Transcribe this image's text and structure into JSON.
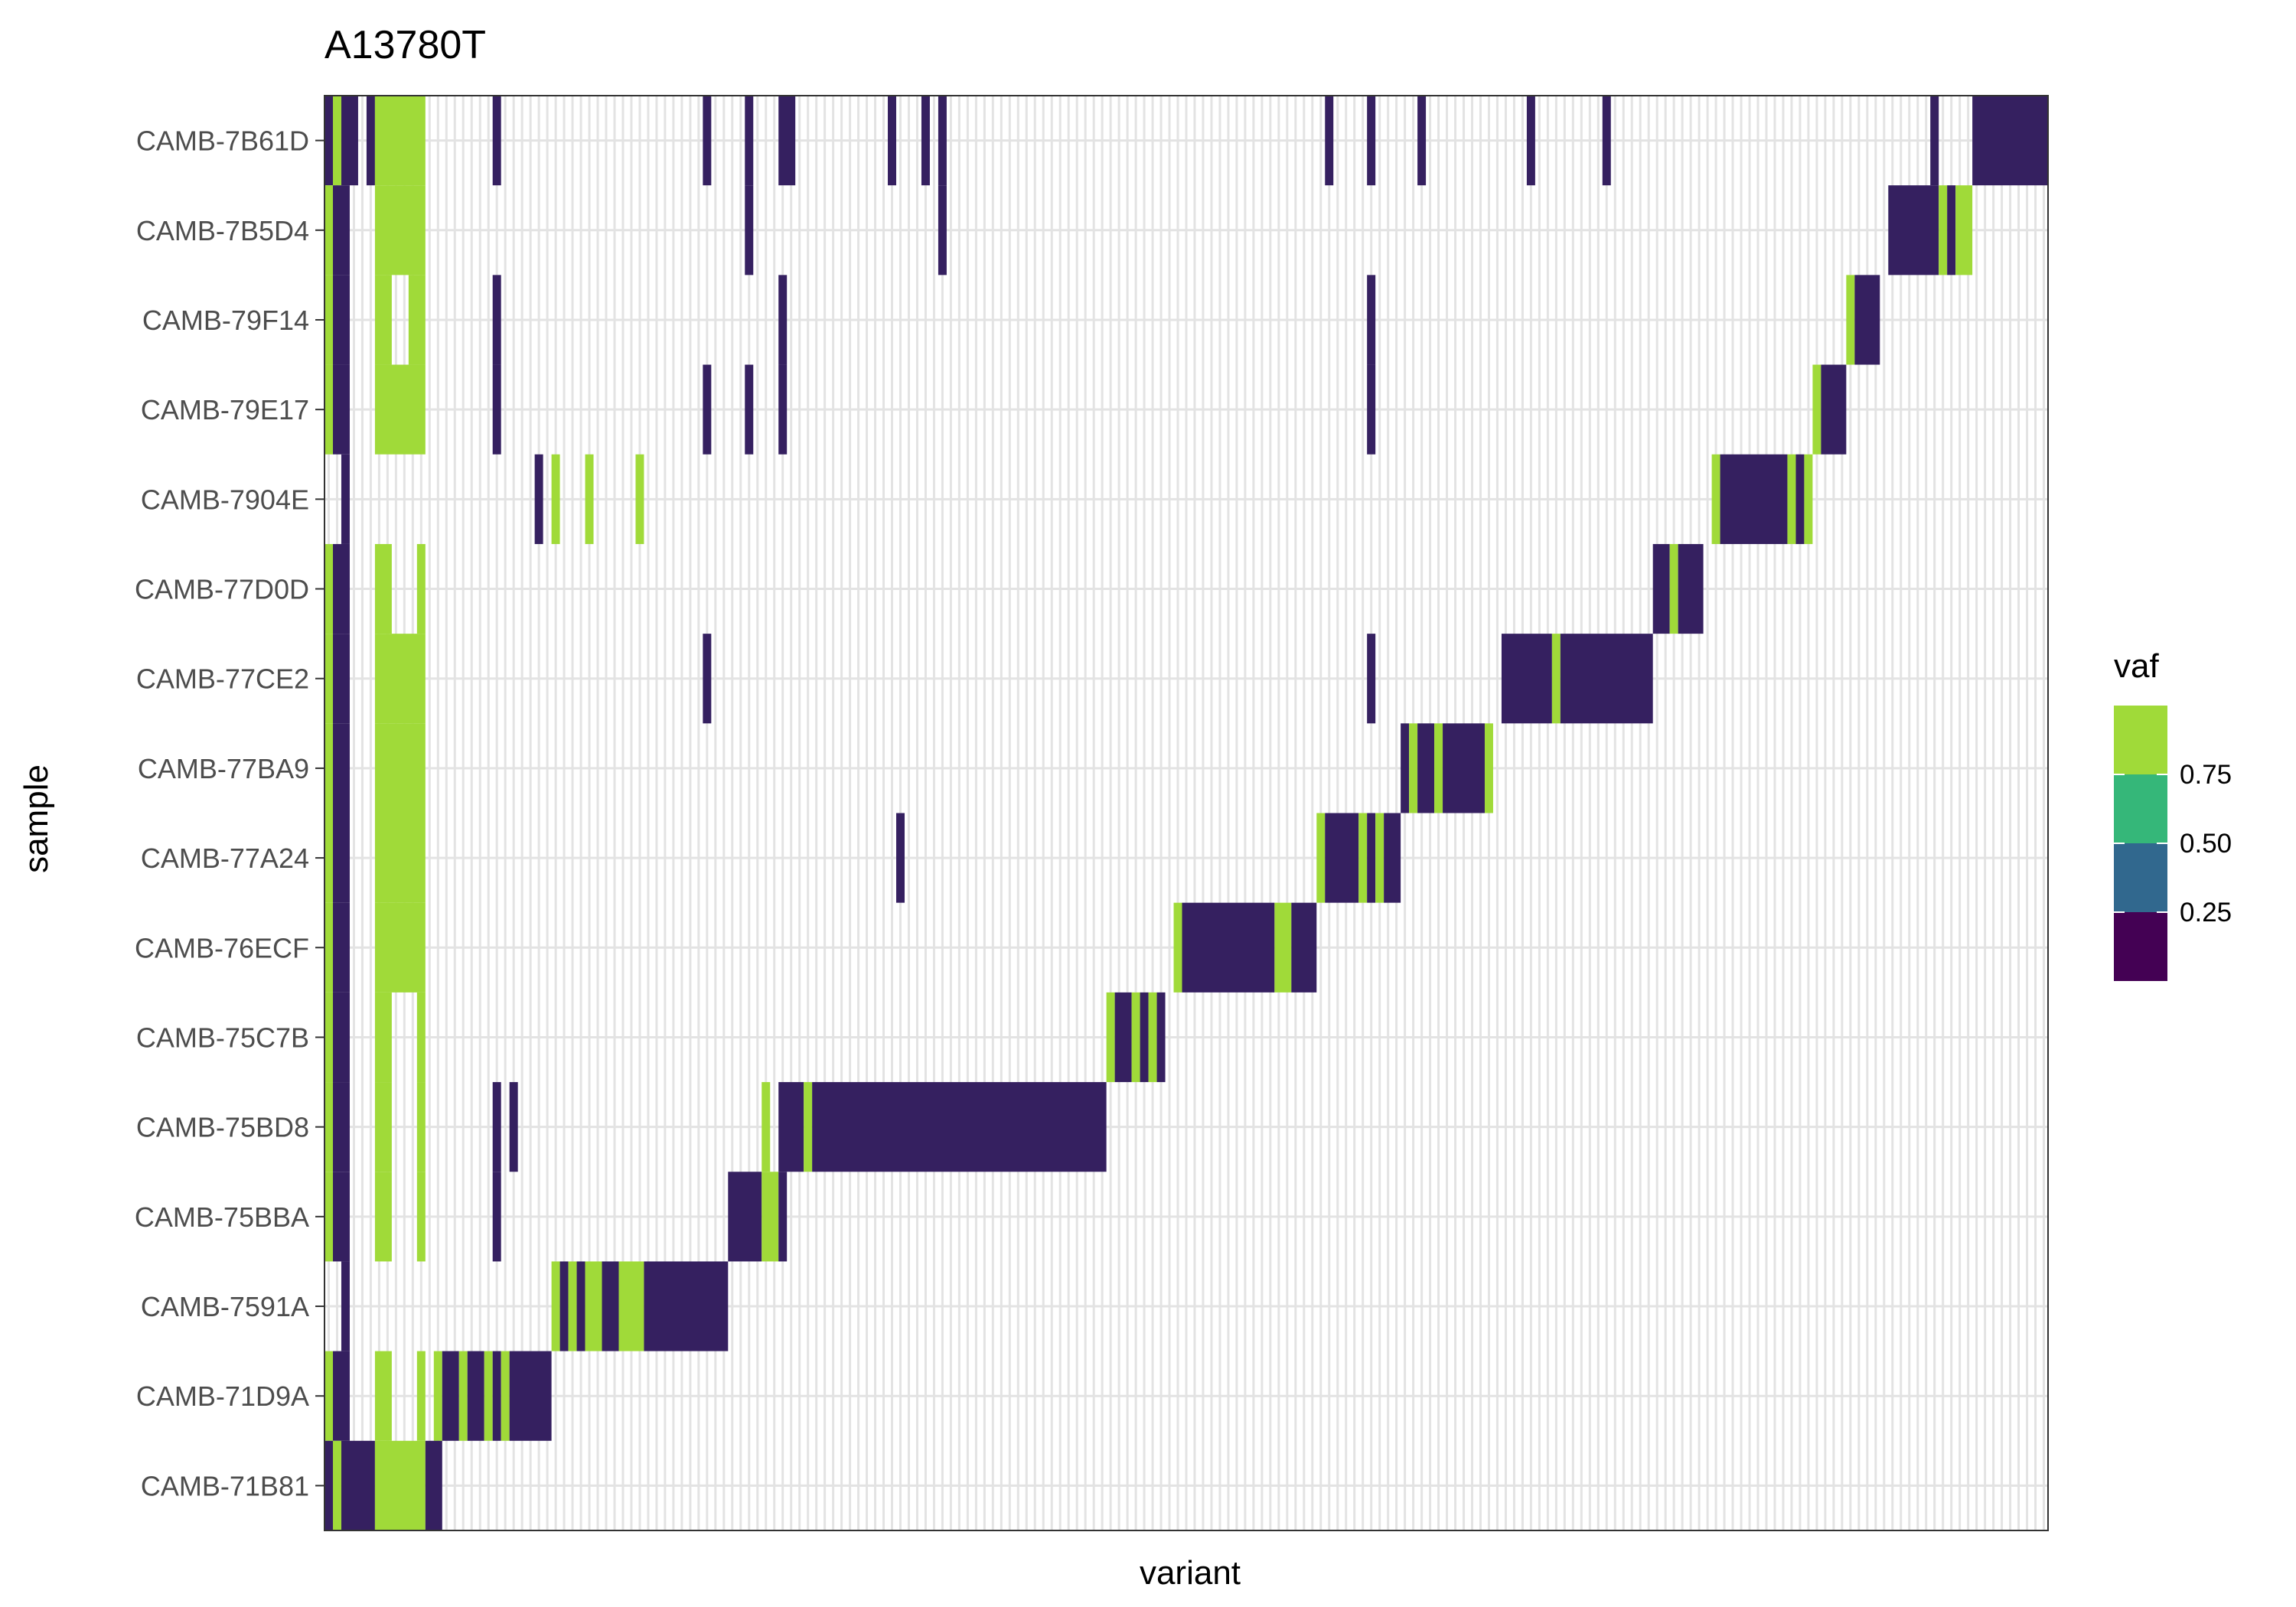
{
  "chart_data": {
    "type": "heatmap",
    "title": "A13780T",
    "xlabel": "variant",
    "ylabel": "sample",
    "x_tick_labels": false,
    "grid": true,
    "n_variants": 205,
    "samples": [
      "CAMB-7B61D",
      "CAMB-7B5D4",
      "CAMB-79F14",
      "CAMB-79E17",
      "CAMB-7904E",
      "CAMB-77D0D",
      "CAMB-77CE2",
      "CAMB-77BA9",
      "CAMB-77A24",
      "CAMB-76ECF",
      "CAMB-75C7B",
      "CAMB-75BD8",
      "CAMB-75BBA",
      "CAMB-7591A",
      "CAMB-71D9A",
      "CAMB-71B81"
    ],
    "legend": {
      "title": "vaf",
      "position": "right",
      "breaks": [
        "0.75",
        "0.50",
        "0.25"
      ],
      "colors": [
        "#440154",
        "#31688e",
        "#35b779",
        "#a0da39"
      ]
    },
    "colors": {
      "low": "#352060",
      "high": "#a0da39"
    },
    "vaf_note": "values per [sample, variant_start, variant_end] approx; 0.02 = low VAF, 0.95 = high VAF",
    "cells": {
      "CAMB-7B61D": [
        [
          0,
          0,
          0.02
        ],
        [
          1,
          1,
          0.95
        ],
        [
          2,
          3,
          0.02
        ],
        [
          5,
          5,
          0.02
        ],
        [
          6,
          11,
          0.95
        ],
        [
          20,
          20,
          0.02
        ],
        [
          45,
          45,
          0.02
        ],
        [
          50,
          50,
          0.02
        ],
        [
          54,
          55,
          0.02
        ],
        [
          67,
          67,
          0.02
        ],
        [
          71,
          71,
          0.02
        ],
        [
          73,
          73,
          0.02
        ],
        [
          119,
          119,
          0.02
        ],
        [
          124,
          124,
          0.02
        ],
        [
          130,
          130,
          0.02
        ],
        [
          143,
          143,
          0.02
        ],
        [
          152,
          152,
          0.02
        ],
        [
          191,
          191,
          0.02
        ],
        [
          196,
          204,
          0.02
        ]
      ],
      "CAMB-7B5D4": [
        [
          0,
          0,
          0.95
        ],
        [
          1,
          2,
          0.02
        ],
        [
          6,
          11,
          0.95
        ],
        [
          50,
          50,
          0.02
        ],
        [
          73,
          73,
          0.02
        ],
        [
          186,
          191,
          0.02
        ],
        [
          192,
          192,
          0.95
        ],
        [
          193,
          193,
          0.02
        ],
        [
          194,
          195,
          0.95
        ]
      ],
      "CAMB-79F14": [
        [
          0,
          0,
          0.95
        ],
        [
          1,
          2,
          0.02
        ],
        [
          6,
          7,
          0.95
        ],
        [
          10,
          11,
          0.95
        ],
        [
          20,
          20,
          0.02
        ],
        [
          54,
          54,
          0.02
        ],
        [
          124,
          124,
          0.02
        ],
        [
          181,
          181,
          0.95
        ],
        [
          182,
          184,
          0.02
        ]
      ],
      "CAMB-79E17": [
        [
          0,
          0,
          0.95
        ],
        [
          1,
          2,
          0.02
        ],
        [
          6,
          11,
          0.95
        ],
        [
          20,
          20,
          0.02
        ],
        [
          45,
          45,
          0.02
        ],
        [
          50,
          50,
          0.02
        ],
        [
          54,
          54,
          0.02
        ],
        [
          124,
          124,
          0.02
        ],
        [
          177,
          177,
          0.95
        ],
        [
          178,
          180,
          0.02
        ]
      ],
      "CAMB-7904E": [
        [
          2,
          2,
          0.02
        ],
        [
          25,
          25,
          0.02
        ],
        [
          27,
          27,
          0.95
        ],
        [
          31,
          31,
          0.95
        ],
        [
          37,
          37,
          0.95
        ],
        [
          165,
          165,
          0.95
        ],
        [
          166,
          173,
          0.02
        ],
        [
          174,
          174,
          0.95
        ],
        [
          175,
          175,
          0.02
        ],
        [
          176,
          176,
          0.95
        ]
      ],
      "CAMB-77D0D": [
        [
          0,
          0,
          0.95
        ],
        [
          1,
          2,
          0.02
        ],
        [
          6,
          7,
          0.95
        ],
        [
          11,
          11,
          0.95
        ],
        [
          158,
          159,
          0.02
        ],
        [
          160,
          160,
          0.95
        ],
        [
          161,
          163,
          0.02
        ]
      ],
      "CAMB-77CE2": [
        [
          0,
          0,
          0.95
        ],
        [
          1,
          2,
          0.02
        ],
        [
          6,
          11,
          0.95
        ],
        [
          45,
          45,
          0.02
        ],
        [
          124,
          124,
          0.02
        ],
        [
          140,
          145,
          0.02
        ],
        [
          146,
          146,
          0.95
        ],
        [
          147,
          157,
          0.02
        ]
      ],
      "CAMB-77BA9": [
        [
          0,
          0,
          0.95
        ],
        [
          1,
          2,
          0.02
        ],
        [
          6,
          11,
          0.95
        ],
        [
          128,
          128,
          0.02
        ],
        [
          129,
          129,
          0.95
        ],
        [
          130,
          131,
          0.02
        ],
        [
          132,
          132,
          0.95
        ],
        [
          133,
          137,
          0.02
        ],
        [
          138,
          138,
          0.95
        ]
      ],
      "CAMB-77A24": [
        [
          0,
          0,
          0.95
        ],
        [
          1,
          2,
          0.02
        ],
        [
          6,
          11,
          0.95
        ],
        [
          68,
          68,
          0.02
        ],
        [
          118,
          118,
          0.95
        ],
        [
          119,
          122,
          0.02
        ],
        [
          123,
          123,
          0.95
        ],
        [
          124,
          124,
          0.02
        ],
        [
          125,
          125,
          0.95
        ],
        [
          126,
          127,
          0.02
        ]
      ],
      "CAMB-76ECF": [
        [
          0,
          0,
          0.95
        ],
        [
          1,
          2,
          0.02
        ],
        [
          6,
          11,
          0.95
        ],
        [
          101,
          101,
          0.95
        ],
        [
          102,
          112,
          0.02
        ],
        [
          113,
          114,
          0.95
        ],
        [
          115,
          117,
          0.02
        ]
      ],
      "CAMB-75C7B": [
        [
          0,
          0,
          0.95
        ],
        [
          1,
          2,
          0.02
        ],
        [
          6,
          7,
          0.95
        ],
        [
          11,
          11,
          0.95
        ],
        [
          93,
          93,
          0.95
        ],
        [
          94,
          95,
          0.02
        ],
        [
          96,
          96,
          0.95
        ],
        [
          97,
          97,
          0.02
        ],
        [
          98,
          98,
          0.95
        ],
        [
          99,
          99,
          0.02
        ]
      ],
      "CAMB-75BD8": [
        [
          0,
          0,
          0.95
        ],
        [
          1,
          2,
          0.02
        ],
        [
          6,
          7,
          0.95
        ],
        [
          11,
          11,
          0.95
        ],
        [
          20,
          20,
          0.02
        ],
        [
          22,
          22,
          0.02
        ],
        [
          52,
          52,
          0.95
        ],
        [
          54,
          56,
          0.02
        ],
        [
          57,
          57,
          0.95
        ],
        [
          58,
          92,
          0.02
        ]
      ],
      "CAMB-75BBA": [
        [
          0,
          0,
          0.95
        ],
        [
          1,
          2,
          0.02
        ],
        [
          6,
          7,
          0.95
        ],
        [
          11,
          11,
          0.95
        ],
        [
          20,
          20,
          0.02
        ],
        [
          48,
          51,
          0.02
        ],
        [
          52,
          53,
          0.95
        ],
        [
          54,
          54,
          0.02
        ]
      ],
      "CAMB-7591A": [
        [
          2,
          2,
          0.02
        ],
        [
          27,
          27,
          0.95
        ],
        [
          28,
          28,
          0.02
        ],
        [
          29,
          29,
          0.95
        ],
        [
          30,
          30,
          0.02
        ],
        [
          31,
          32,
          0.95
        ],
        [
          33,
          34,
          0.02
        ],
        [
          35,
          37,
          0.95
        ],
        [
          38,
          47,
          0.02
        ]
      ],
      "CAMB-71D9A": [
        [
          0,
          0,
          0.95
        ],
        [
          1,
          2,
          0.02
        ],
        [
          6,
          7,
          0.95
        ],
        [
          11,
          11,
          0.95
        ],
        [
          13,
          13,
          0.95
        ],
        [
          14,
          15,
          0.02
        ],
        [
          16,
          16,
          0.95
        ],
        [
          17,
          18,
          0.02
        ],
        [
          19,
          19,
          0.95
        ],
        [
          20,
          20,
          0.02
        ],
        [
          21,
          21,
          0.95
        ],
        [
          22,
          26,
          0.02
        ]
      ],
      "CAMB-71B81": [
        [
          0,
          0,
          0.02
        ],
        [
          1,
          1,
          0.95
        ],
        [
          2,
          5,
          0.02
        ],
        [
          6,
          11,
          0.95
        ],
        [
          12,
          13,
          0.02
        ]
      ]
    }
  }
}
